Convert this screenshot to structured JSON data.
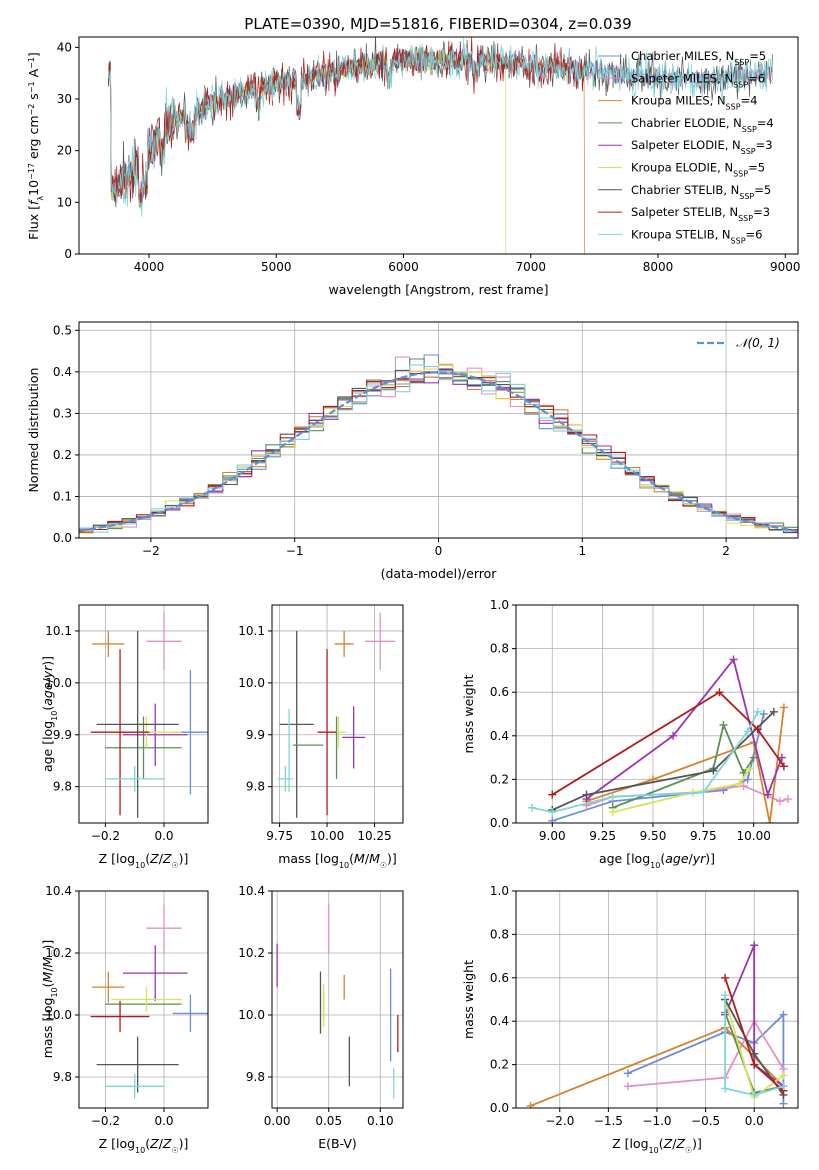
{
  "figure_title": "PLATE=0390, MJD=51816, FIBERID=0304, z=0.039",
  "colors": {
    "Chabrier MILES": "#6b8ed6",
    "Salpeter MILES": "#e58fc4",
    "Kroupa MILES": "#d9822b",
    "Chabrier ELODIE": "#5a8f5a",
    "Salpeter ELODIE": "#9b34b0",
    "Kroupa ELODIE": "#d8e35a",
    "Chabrier STELIB": "#555555",
    "Salpeter STELIB": "#b31b1b",
    "Kroupa STELIB": "#7fd6d9"
  },
  "chart_data": [
    {
      "id": "spectrum",
      "type": "line",
      "title": "PLATE=0390, MJD=51816, FIBERID=0304, z=0.039",
      "xlabel": "wavelength [Angstrom, rest frame]",
      "ylabel": "Flux [f_λ10^-17 erg cm^-2 s^-1 A^-1]",
      "xlim": [
        3450,
        9100
      ],
      "ylim": [
        0,
        42
      ],
      "xticks": [
        4000,
        5000,
        6000,
        7000,
        8000,
        9000
      ],
      "yticks": [
        0,
        10,
        20,
        30,
        40
      ],
      "grid": false,
      "legend_position": "top-right",
      "continuum": {
        "x": [
          3700,
          3800,
          3900,
          4000,
          4100,
          4200,
          4400,
          4600,
          4800,
          5000,
          5200,
          5400,
          5600,
          5800,
          6000,
          6200,
          6400,
          6600,
          6800,
          7000,
          7200,
          7400,
          7600,
          7800,
          8000,
          8200,
          8400,
          8600,
          8800
        ],
        "y": [
          12,
          14,
          17,
          20,
          24,
          26,
          28,
          30,
          32,
          33,
          33.5,
          35,
          36,
          37,
          37.5,
          37.5,
          37.5,
          37.5,
          37,
          36.5,
          36,
          35.5,
          35,
          34.5,
          34,
          34,
          34,
          34.5,
          35
        ]
      },
      "series": [
        {
          "name": "Chabrier MILES",
          "nssp": "5",
          "color": "#6b8ed6",
          "xmax": 8900
        },
        {
          "name": "Salpeter MILES",
          "nssp": "6",
          "color": "#e58fc4",
          "xmax": 8900
        },
        {
          "name": "Kroupa MILES",
          "nssp": "4",
          "color": "#d9822b",
          "xmax": 7420,
          "drop": 7420
        },
        {
          "name": "Chabrier ELODIE",
          "nssp": "4",
          "color": "#5a8f5a",
          "xmax": 6800
        },
        {
          "name": "Salpeter ELODIE",
          "nssp": "3",
          "color": "#9b34b0",
          "xmax": 6800
        },
        {
          "name": "Kroupa ELODIE",
          "nssp": "5",
          "color": "#d8e35a",
          "xmax": 6800,
          "drop": 6800
        },
        {
          "name": "Chabrier STELIB",
          "nssp": "5",
          "color": "#555555",
          "xmax": 8900
        },
        {
          "name": "Salpeter STELIB",
          "nssp": "3",
          "color": "#b31b1b",
          "xmax": 7420
        },
        {
          "name": "Kroupa STELIB",
          "nssp": "6",
          "color": "#7fd6d9",
          "xmax": 8900
        }
      ]
    },
    {
      "id": "residuals",
      "type": "histogram",
      "xlabel": "(data-model)/error",
      "ylabel": "Normed distribution",
      "xlim": [
        -2.5,
        2.5
      ],
      "ylim": [
        0,
        0.52
      ],
      "xticks": [
        -2,
        -1,
        0,
        1,
        2
      ],
      "yticks": [
        0.0,
        0.1,
        0.2,
        0.3,
        0.4,
        0.5
      ],
      "grid": true,
      "legend_position": "top-right",
      "reference_label": "𝒩(0, 1)",
      "bin_width": 0.1
    },
    {
      "id": "age-vs-z",
      "type": "errorbar",
      "xlabel": "Z [log10(Z/Z☉)]",
      "ylabel": "age [log10(age/yr)]",
      "xlim": [
        -0.29,
        0.15
      ],
      "ylim": [
        9.73,
        10.15
      ],
      "xticks": [
        -0.2,
        0.0
      ],
      "yticks": [
        9.8,
        9.9,
        10.0,
        10.1
      ],
      "grid": true,
      "points": [
        {
          "series": "Chabrier MILES",
          "x": 0.09,
          "xerr": 0.06,
          "y": 9.905,
          "yerr": 0.12
        },
        {
          "series": "Salpeter MILES",
          "x": 0.0,
          "xerr": 0.06,
          "y": 10.08,
          "yerr": 0.055
        },
        {
          "series": "Kroupa MILES",
          "x": -0.19,
          "xerr": 0.055,
          "y": 10.075,
          "yerr": 0.025
        },
        {
          "series": "Chabrier ELODIE",
          "x": -0.07,
          "xerr": 0.13,
          "y": 9.875,
          "yerr": 0.06
        },
        {
          "series": "Salpeter ELODIE",
          "x": -0.03,
          "xerr": 0.11,
          "y": 9.9,
          "yerr": 0.06
        },
        {
          "series": "Kroupa ELODIE",
          "x": -0.06,
          "xerr": 0.12,
          "y": 9.905,
          "yerr": 0.03
        },
        {
          "series": "Chabrier STELIB",
          "x": -0.09,
          "xerr": 0.14,
          "y": 9.92,
          "yerr": 0.18
        },
        {
          "series": "Salpeter STELIB",
          "x": -0.15,
          "xerr": 0.1,
          "y": 9.905,
          "yerr": 0.16
        },
        {
          "series": "Kroupa STELIB",
          "x": -0.1,
          "xerr": 0.1,
          "y": 9.815,
          "yerr": 0.025
        }
      ]
    },
    {
      "id": "age-vs-mass",
      "type": "errorbar",
      "xlabel": "mass [log10(M/M☉)]",
      "ylabel": "",
      "xlim": [
        9.71,
        10.4
      ],
      "ylim": [
        9.73,
        10.15
      ],
      "xticks": [
        9.75,
        10.0,
        10.25
      ],
      "yticks": [
        9.8,
        9.9,
        10.0,
        10.1
      ],
      "grid": true,
      "points": [
        {
          "series": "Chabrier MILES",
          "x": 10.0,
          "xerr": 0.0,
          "y": 9.905,
          "yerr": 0.0
        },
        {
          "series": "Salpeter MILES",
          "x": 10.28,
          "xerr": 0.08,
          "y": 10.08,
          "yerr": 0.055
        },
        {
          "series": "Kroupa MILES",
          "x": 10.09,
          "xerr": 0.05,
          "y": 10.075,
          "yerr": 0.025
        },
        {
          "series": "Chabrier ELODIE",
          "x": 10.05,
          "xerr": 0.0,
          "y": 9.875,
          "yerr": 0.06
        },
        {
          "series": "Salpeter ELODIE",
          "x": 10.14,
          "xerr": 0.06,
          "y": 9.895,
          "yerr": 0.06
        },
        {
          "series": "Kroupa ELODIE",
          "x": 10.06,
          "xerr": 0.04,
          "y": 9.905,
          "yerr": 0.03
        },
        {
          "series": "Chabrier STELIB",
          "x": 9.84,
          "xerr": 0.09,
          "y": 9.92,
          "yerr": 0.18
        },
        {
          "series": "Salpeter STELIB",
          "x": 10.0,
          "xerr": 0.05,
          "y": 9.905,
          "yerr": 0.16
        },
        {
          "series": "Kroupa STELIB",
          "x": 9.78,
          "xerr": 0.04,
          "y": 9.815,
          "yerr": 0.025
        },
        {
          "series": "Kroupa STELIB",
          "x": 9.8,
          "xerr": 0.0,
          "y": 9.87,
          "yerr": 0.08
        },
        {
          "series": "Chabrier ELODIE",
          "x": 9.9,
          "xerr": 0.08,
          "y": 9.88,
          "yerr": 0.0
        }
      ]
    },
    {
      "id": "weight-vs-age",
      "type": "line",
      "xlabel": "age [log10(age/yr)]",
      "ylabel": "mass weight",
      "xlim": [
        8.82,
        10.22
      ],
      "ylim": [
        0,
        1
      ],
      "xticks": [
        9.0,
        9.25,
        9.5,
        9.75,
        10.0
      ],
      "yticks": [
        0.0,
        0.2,
        0.4,
        0.6,
        0.8,
        1.0
      ],
      "grid": true,
      "series": [
        {
          "name": "Chabrier MILES",
          "x": [
            9.0,
            9.3,
            9.85,
            9.97,
            10.05
          ],
          "y": [
            0.01,
            0.1,
            0.15,
            0.2,
            0.5
          ]
        },
        {
          "name": "Salpeter MILES",
          "x": [
            9.17,
            9.3,
            9.7,
            9.95,
            10.13,
            10.17
          ],
          "y": [
            0.08,
            0.12,
            0.14,
            0.17,
            0.1,
            0.11
          ]
        },
        {
          "name": "Kroupa MILES",
          "x": [
            9.17,
            9.5,
            10.0,
            10.08,
            10.15
          ],
          "y": [
            0.1,
            0.2,
            0.37,
            0.0,
            0.53
          ]
        },
        {
          "name": "Chabrier ELODIE",
          "x": [
            9.3,
            9.8,
            9.85,
            9.95,
            10.0
          ],
          "y": [
            0.07,
            0.25,
            0.45,
            0.23,
            0.3
          ]
        },
        {
          "name": "Salpeter ELODIE",
          "x": [
            9.17,
            9.6,
            9.9,
            10.07,
            10.14
          ],
          "y": [
            0.11,
            0.4,
            0.75,
            0.13,
            0.3
          ]
        },
        {
          "name": "Kroupa ELODIE",
          "x": [
            9.3,
            9.7,
            9.93,
            9.98
          ],
          "y": [
            0.05,
            0.14,
            0.18,
            0.25
          ]
        },
        {
          "name": "Chabrier STELIB",
          "x": [
            9.0,
            9.17,
            9.8,
            10.1
          ],
          "y": [
            0.06,
            0.13,
            0.24,
            0.51
          ]
        },
        {
          "name": "Salpeter STELIB",
          "x": [
            9.0,
            9.83,
            10.02,
            10.15
          ],
          "y": [
            0.13,
            0.6,
            0.43,
            0.26
          ]
        },
        {
          "name": "Kroupa STELIB",
          "x": [
            8.9,
            9.0,
            9.3,
            9.75,
            9.97,
            10.02
          ],
          "y": [
            0.07,
            0.05,
            0.12,
            0.14,
            0.42,
            0.51
          ]
        }
      ]
    },
    {
      "id": "mass-vs-z",
      "type": "errorbar",
      "xlabel": "Z [log10(Z/Z☉)]",
      "ylabel": "mass [log10(M/M☉)]",
      "xlim": [
        -0.29,
        0.15
      ],
      "ylim": [
        9.7,
        10.4
      ],
      "xticks": [
        -0.2,
        0.0
      ],
      "yticks": [
        9.8,
        10.0,
        10.2,
        10.4
      ],
      "grid": true,
      "points": [
        {
          "series": "Chabrier MILES",
          "x": 0.09,
          "xerr": 0.06,
          "y": 10.005,
          "yerr": 0.06
        },
        {
          "series": "Salpeter MILES",
          "x": 0.0,
          "xerr": 0.06,
          "y": 10.28,
          "yerr": 0.08
        },
        {
          "series": "Kroupa MILES",
          "x": -0.19,
          "xerr": 0.055,
          "y": 10.09,
          "yerr": 0.05
        },
        {
          "series": "Chabrier ELODIE",
          "x": -0.07,
          "xerr": 0.13,
          "y": 10.035,
          "yerr": 0.0
        },
        {
          "series": "Salpeter ELODIE",
          "x": -0.03,
          "xerr": 0.11,
          "y": 10.135,
          "yerr": 0.09
        },
        {
          "series": "Kroupa ELODIE",
          "x": -0.06,
          "xerr": 0.12,
          "y": 10.05,
          "yerr": 0.04
        },
        {
          "series": "Chabrier STELIB",
          "x": -0.09,
          "xerr": 0.14,
          "y": 9.84,
          "yerr": 0.09
        },
        {
          "series": "Salpeter STELIB",
          "x": -0.15,
          "xerr": 0.1,
          "y": 9.995,
          "yerr": 0.05
        },
        {
          "series": "Kroupa STELIB",
          "x": -0.1,
          "xerr": 0.1,
          "y": 9.77,
          "yerr": 0.04
        }
      ]
    },
    {
      "id": "mass-vs-ebv",
      "type": "errorbar",
      "xlabel": "E(B-V)",
      "ylabel": "",
      "xlim": [
        -0.005,
        0.122
      ],
      "ylim": [
        9.7,
        10.4
      ],
      "xticks": [
        0.0,
        0.05,
        0.1
      ],
      "yticks": [
        9.8,
        10.0,
        10.2,
        10.4
      ],
      "grid": true,
      "points": [
        {
          "series": "Chabrier MILES",
          "x": 0.11,
          "xerr": 0,
          "y": 10.0,
          "yerr": 0.15
        },
        {
          "series": "Salpeter MILES",
          "x": 0.05,
          "xerr": 0,
          "y": 10.28,
          "yerr": 0.08
        },
        {
          "series": "Kroupa MILES",
          "x": 0.065,
          "xerr": 0,
          "y": 10.09,
          "yerr": 0.04
        },
        {
          "series": "Chabrier ELODIE",
          "x": 0.045,
          "xerr": 0,
          "y": 10.03,
          "yerr": 0.04
        },
        {
          "series": "Salpeter ELODIE",
          "x": 0.0,
          "xerr": 0,
          "y": 10.16,
          "yerr": 0.07
        },
        {
          "series": "Kroupa ELODIE",
          "x": 0.045,
          "xerr": 0,
          "y": 10.03,
          "yerr": 0.07
        },
        {
          "series": "Chabrier STELIB",
          "x": 0.042,
          "xerr": 0,
          "y": 10.04,
          "yerr": 0.1
        },
        {
          "series": "Chabrier STELIB",
          "x": 0.07,
          "xerr": 0,
          "y": 9.85,
          "yerr": 0.08
        },
        {
          "series": "Salpeter STELIB",
          "x": 0.117,
          "xerr": 0,
          "y": 9.94,
          "yerr": 0.06
        },
        {
          "series": "Kroupa STELIB",
          "x": 0.113,
          "xerr": 0,
          "y": 9.78,
          "yerr": 0.05
        }
      ]
    },
    {
      "id": "weight-vs-z",
      "type": "line",
      "xlabel": "Z [log10(Z/Z☉)]",
      "ylabel": "mass weight",
      "xlim": [
        -2.45,
        0.45
      ],
      "ylim": [
        0,
        1
      ],
      "xticks": [
        -2.0,
        -1.5,
        -1.0,
        -0.5,
        0.0
      ],
      "yticks": [
        0.0,
        0.2,
        0.4,
        0.6,
        0.8,
        1.0
      ],
      "grid": true,
      "series": [
        {
          "name": "Chabrier MILES",
          "x": [
            -1.3,
            -0.3,
            0.0,
            0.3,
            0.3
          ],
          "y": [
            0.16,
            0.35,
            0.3,
            0.43,
            0.02
          ]
        },
        {
          "name": "Salpeter MILES",
          "x": [
            -1.3,
            -0.3,
            0.0,
            0.3
          ],
          "y": [
            0.1,
            0.14,
            0.4,
            0.18
          ]
        },
        {
          "name": "Kroupa MILES",
          "x": [
            -2.3,
            -0.3,
            0.3
          ],
          "y": [
            0.01,
            0.37,
            0.1
          ]
        },
        {
          "name": "Chabrier ELODIE",
          "x": [
            -0.3,
            0.0,
            0.3
          ],
          "y": [
            0.44,
            0.07,
            0.1
          ]
        },
        {
          "name": "Salpeter ELODIE",
          "x": [
            -0.3,
            0.0,
            0.0,
            0.3
          ],
          "y": [
            0.43,
            0.75,
            0.2,
            0.1
          ]
        },
        {
          "name": "Kroupa ELODIE",
          "x": [
            -0.3,
            0.0,
            0.3
          ],
          "y": [
            0.5,
            0.05,
            0.15
          ]
        },
        {
          "name": "Chabrier STELIB",
          "x": [
            -0.3,
            0.0,
            0.3
          ],
          "y": [
            0.5,
            0.25,
            0.06
          ]
        },
        {
          "name": "Salpeter STELIB",
          "x": [
            -0.3,
            0.0,
            0.3
          ],
          "y": [
            0.6,
            0.2,
            0.08
          ]
        },
        {
          "name": "Kroupa STELIB",
          "x": [
            -0.3,
            -0.3,
            0.0,
            0.3
          ],
          "y": [
            0.52,
            0.09,
            0.06,
            0.1
          ]
        }
      ]
    }
  ]
}
